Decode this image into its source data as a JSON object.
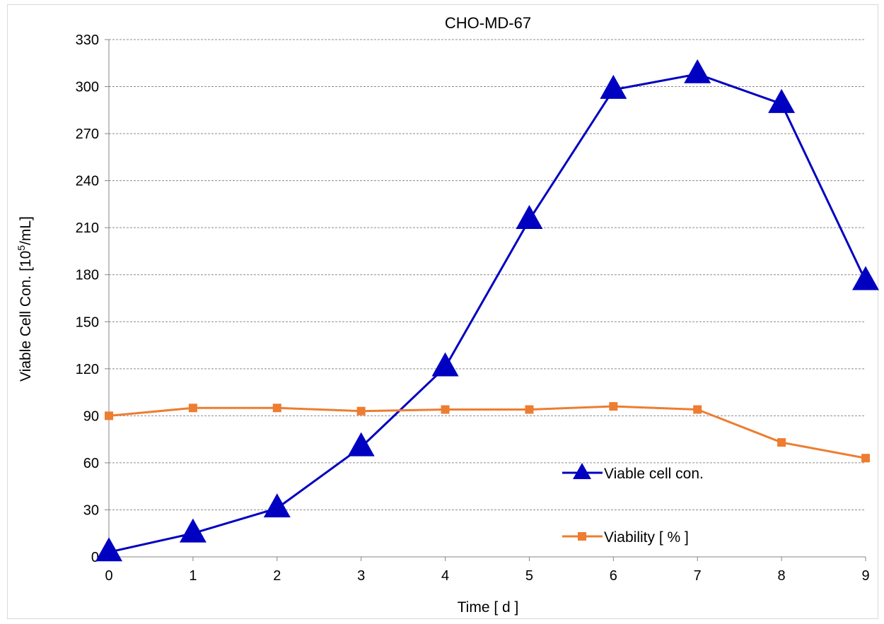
{
  "chart_data": {
    "type": "line",
    "title": "CHO-MD-67",
    "xlabel": "Time   [ d ]",
    "ylabel_main": "Viable Cell Con.  [10",
    "ylabel_sup": "5",
    "ylabel_tail": "/mL]",
    "x": [
      0,
      1,
      2,
      3,
      4,
      5,
      6,
      7,
      8,
      9
    ],
    "xlim": [
      0,
      9
    ],
    "ylim": [
      0,
      330
    ],
    "yticks": [
      0,
      30,
      60,
      90,
      120,
      150,
      180,
      210,
      240,
      270,
      300,
      330
    ],
    "xticks": [
      0,
      1,
      2,
      3,
      4,
      5,
      6,
      7,
      8,
      9
    ],
    "grid": "horizontal dashed",
    "legend_position": "bottom-right",
    "series": [
      {
        "name": "Viable cell con.",
        "marker": "triangle",
        "color": "#0000c0",
        "values": [
          3,
          15,
          31,
          70,
          121,
          215,
          298,
          308,
          289,
          176
        ]
      },
      {
        "name": "Viability [ % ]",
        "marker": "square",
        "color": "#ed7d31",
        "values": [
          90,
          95,
          95,
          93,
          94,
          94,
          96,
          94,
          73,
          63
        ]
      }
    ]
  }
}
